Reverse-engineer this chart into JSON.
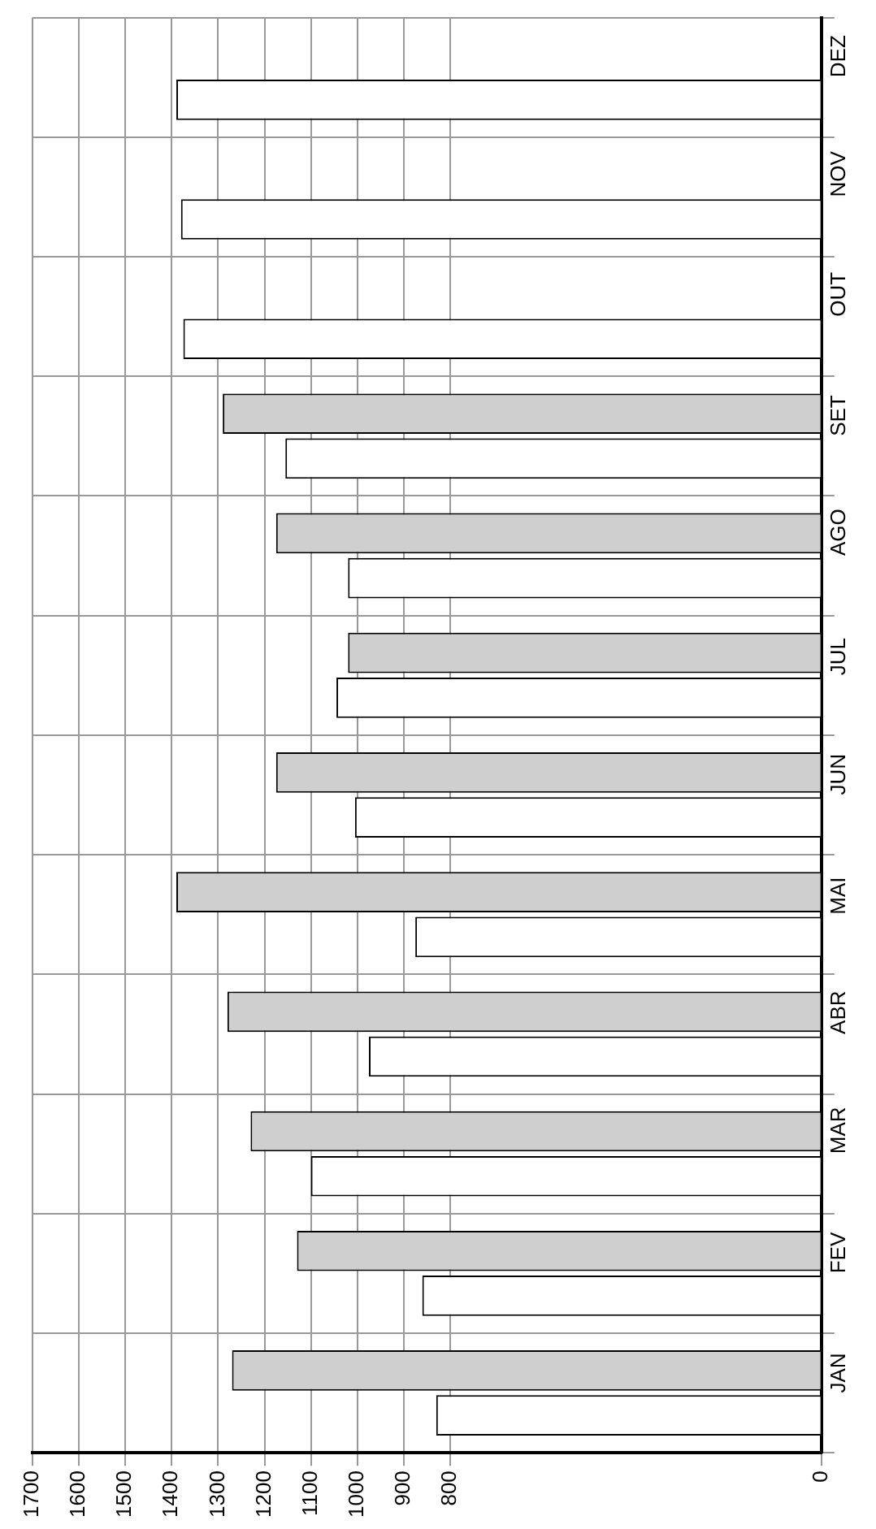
{
  "chart_data": {
    "type": "bar",
    "orientation": "horizontal",
    "categories": [
      "DEZ",
      "NOV",
      "OUT",
      "SET",
      "AGO",
      "JUL",
      "JUN",
      "MAI",
      "ABR",
      "MAR",
      "FEV",
      "JAN"
    ],
    "series": [
      {
        "color": "#cfcfcf",
        "values": [
          null,
          null,
          null,
          1290,
          1175,
          1020,
          1175,
          1390,
          1280,
          1230,
          1130,
          1270
        ]
      },
      {
        "color": "#ffffff",
        "values": [
          1390,
          1380,
          1375,
          1155,
          1020,
          1045,
          1005,
          875,
          975,
          1100,
          860,
          830
        ]
      }
    ],
    "xlim": [
      1700,
      0
    ],
    "xticks": [
      0,
      800,
      900,
      1000,
      1100,
      1200,
      1300,
      1400,
      1500,
      1600,
      1700
    ],
    "grid": true,
    "legend": false
  }
}
